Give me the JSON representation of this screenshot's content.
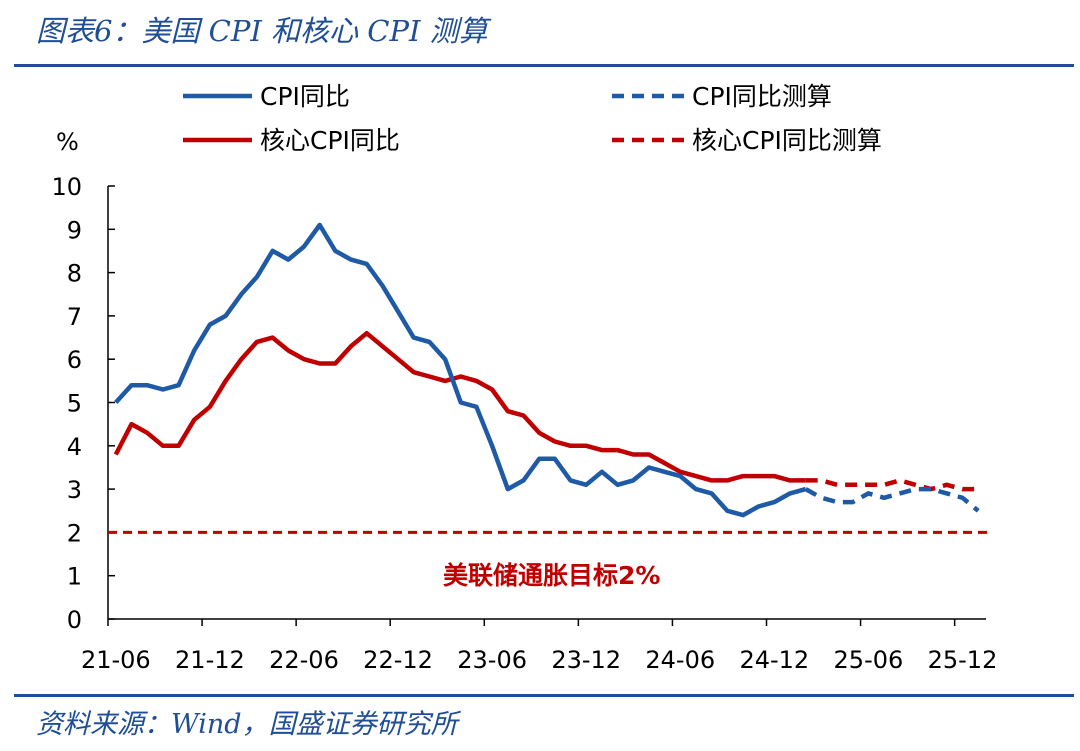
{
  "figure_title": "图表6：美国 CPI 和核心 CPI 测算",
  "source": "资料来源：Wind，国盛证券研究所",
  "colors": {
    "blue": "#1f5aa6",
    "red": "#c00000",
    "frame": "#1f4e96"
  },
  "chart_data": {
    "type": "line",
    "title": "",
    "ylabel": "%",
    "xlabel": "",
    "ylim": [
      0,
      10
    ],
    "y_ticks": [
      "0",
      "1",
      "2",
      "3",
      "4",
      "5",
      "6",
      "7",
      "8",
      "9",
      "10"
    ],
    "x_ticks": [
      "21-06",
      "21-12",
      "22-06",
      "22-12",
      "23-06",
      "23-12",
      "24-06",
      "24-12",
      "25-06",
      "25-12"
    ],
    "x_period_start": "2021-05",
    "grid": false,
    "legend_position": "top",
    "series": [
      {
        "name": "CPI同比",
        "style": "solid",
        "color": "#1f5aa6",
        "start": "2021-05",
        "values": [
          5.0,
          5.4,
          5.4,
          5.3,
          5.4,
          6.2,
          6.8,
          7.0,
          7.5,
          7.9,
          8.5,
          8.3,
          8.6,
          9.1,
          8.5,
          8.3,
          8.2,
          7.7,
          7.1,
          6.5,
          6.4,
          6.0,
          5.0,
          4.9,
          4.0,
          3.0,
          3.2,
          3.7,
          3.7,
          3.2,
          3.1,
          3.4,
          3.1,
          3.2,
          3.5,
          3.4,
          3.3,
          3.0,
          2.9,
          2.5,
          2.4,
          2.6,
          2.7,
          2.9,
          3.0
        ]
      },
      {
        "name": "CPI同比测算",
        "style": "dashed",
        "color": "#1f5aa6",
        "start": "2025-01",
        "values": [
          3.0,
          2.8,
          2.7,
          2.7,
          2.9,
          2.8,
          2.9,
          3.0,
          3.0,
          2.9,
          2.8,
          2.5
        ]
      },
      {
        "name": "核心CPI同比",
        "style": "solid",
        "color": "#c00000",
        "start": "2021-05",
        "values": [
          3.8,
          4.5,
          4.3,
          4.0,
          4.0,
          4.6,
          4.9,
          5.5,
          6.0,
          6.4,
          6.5,
          6.2,
          6.0,
          5.9,
          5.9,
          6.3,
          6.6,
          6.3,
          6.0,
          5.7,
          5.6,
          5.5,
          5.6,
          5.5,
          5.3,
          4.8,
          4.7,
          4.3,
          4.1,
          4.0,
          4.0,
          3.9,
          3.9,
          3.8,
          3.8,
          3.6,
          3.4,
          3.3,
          3.2,
          3.2,
          3.3,
          3.3,
          3.3,
          3.2,
          3.2
        ]
      },
      {
        "name": "核心CPI同比测算",
        "style": "dashed",
        "color": "#c00000",
        "start": "2025-01",
        "values": [
          3.2,
          3.2,
          3.1,
          3.1,
          3.1,
          3.1,
          3.2,
          3.1,
          3.0,
          3.1,
          3.0,
          3.0
        ]
      }
    ],
    "reference_line": {
      "y": 2,
      "style": "dashed",
      "color": "#c00000"
    },
    "annotations": [
      {
        "text": "美联储通胀目标2%"
      }
    ]
  }
}
